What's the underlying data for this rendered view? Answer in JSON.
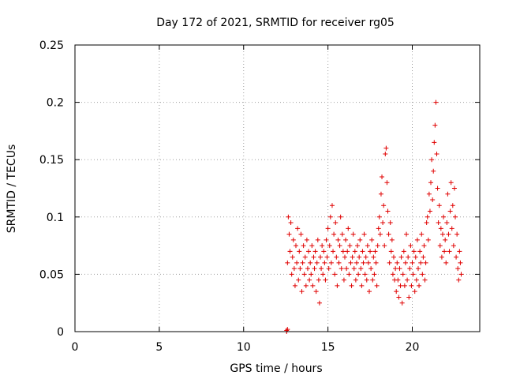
{
  "chart_data": {
    "type": "scatter",
    "title": "Day 172 of 2021, SRMTID for receiver rg05",
    "xlabel": "GPS time / hours",
    "ylabel": "SRMTID / TECUs",
    "xlim": [
      0,
      24
    ],
    "ylim": [
      0,
      0.25
    ],
    "xticks": [
      0,
      5,
      10,
      15,
      20
    ],
    "xtick_labels": [
      "0",
      "5",
      "10",
      "15",
      "20"
    ],
    "yticks": [
      0,
      0.05,
      0.1,
      0.15,
      0.2,
      0.25
    ],
    "ytick_labels": [
      "0",
      "0.05",
      "0.1",
      "0.15",
      "0.2",
      "0.25"
    ],
    "grid": true,
    "marker": "+",
    "color": "#e00000",
    "series": [
      {
        "name": "SRMTID",
        "points": [
          [
            12.55,
            0.0
          ],
          [
            12.55,
            0.001
          ],
          [
            12.6,
            0.002
          ],
          [
            12.6,
            0.06
          ],
          [
            12.65,
            0.1
          ],
          [
            12.7,
            0.085
          ],
          [
            12.75,
            0.07
          ],
          [
            12.8,
            0.095
          ],
          [
            12.85,
            0.05
          ],
          [
            12.9,
            0.065
          ],
          [
            12.95,
            0.08
          ],
          [
            13.0,
            0.055
          ],
          [
            13.05,
            0.04
          ],
          [
            13.1,
            0.075
          ],
          [
            13.15,
            0.06
          ],
          [
            13.2,
            0.09
          ],
          [
            13.25,
            0.045
          ],
          [
            13.3,
            0.07
          ],
          [
            13.35,
            0.055
          ],
          [
            13.4,
            0.085
          ],
          [
            13.45,
            0.035
          ],
          [
            13.5,
            0.06
          ],
          [
            13.55,
            0.075
          ],
          [
            13.6,
            0.05
          ],
          [
            13.65,
            0.065
          ],
          [
            13.7,
            0.04
          ],
          [
            13.75,
            0.08
          ],
          [
            13.8,
            0.055
          ],
          [
            13.85,
            0.07
          ],
          [
            13.9,
            0.045
          ],
          [
            13.95,
            0.06
          ],
          [
            14.0,
            0.05
          ],
          [
            14.05,
            0.075
          ],
          [
            14.1,
            0.04
          ],
          [
            14.15,
            0.065
          ],
          [
            14.2,
            0.055
          ],
          [
            14.25,
            0.07
          ],
          [
            14.3,
            0.035
          ],
          [
            14.35,
            0.06
          ],
          [
            14.4,
            0.08
          ],
          [
            14.45,
            0.045
          ],
          [
            14.5,
            0.025
          ],
          [
            14.55,
            0.065
          ],
          [
            14.6,
            0.055
          ],
          [
            14.65,
            0.075
          ],
          [
            14.7,
            0.05
          ],
          [
            14.75,
            0.07
          ],
          [
            14.8,
            0.06
          ],
          [
            14.85,
            0.045
          ],
          [
            14.9,
            0.08
          ],
          [
            14.95,
            0.065
          ],
          [
            15.0,
            0.09
          ],
          [
            15.05,
            0.055
          ],
          [
            15.1,
            0.075
          ],
          [
            15.15,
            0.1
          ],
          [
            15.2,
            0.06
          ],
          [
            15.25,
            0.11
          ],
          [
            15.3,
            0.07
          ],
          [
            15.35,
            0.085
          ],
          [
            15.4,
            0.05
          ],
          [
            15.45,
            0.095
          ],
          [
            15.5,
            0.065
          ],
          [
            15.55,
            0.04
          ],
          [
            15.6,
            0.08
          ],
          [
            15.65,
            0.06
          ],
          [
            15.7,
            0.075
          ],
          [
            15.75,
            0.1
          ],
          [
            15.8,
            0.055
          ],
          [
            15.85,
            0.085
          ],
          [
            15.9,
            0.07
          ],
          [
            15.95,
            0.045
          ],
          [
            16.0,
            0.065
          ],
          [
            16.05,
            0.08
          ],
          [
            16.1,
            0.055
          ],
          [
            16.15,
            0.07
          ],
          [
            16.2,
            0.09
          ],
          [
            16.25,
            0.05
          ],
          [
            16.3,
            0.075
          ],
          [
            16.35,
            0.06
          ],
          [
            16.4,
            0.04
          ],
          [
            16.45,
            0.065
          ],
          [
            16.5,
            0.085
          ],
          [
            16.55,
            0.055
          ],
          [
            16.6,
            0.07
          ],
          [
            16.65,
            0.045
          ],
          [
            16.7,
            0.06
          ],
          [
            16.75,
            0.075
          ],
          [
            16.8,
            0.05
          ],
          [
            16.85,
            0.065
          ],
          [
            16.9,
            0.08
          ],
          [
            16.95,
            0.055
          ],
          [
            17.0,
            0.04
          ],
          [
            17.05,
            0.07
          ],
          [
            17.1,
            0.06
          ],
          [
            17.15,
            0.085
          ],
          [
            17.2,
            0.05
          ],
          [
            17.25,
            0.065
          ],
          [
            17.3,
            0.045
          ],
          [
            17.35,
            0.075
          ],
          [
            17.4,
            0.06
          ],
          [
            17.45,
            0.035
          ],
          [
            17.5,
            0.07
          ],
          [
            17.55,
            0.055
          ],
          [
            17.6,
            0.08
          ],
          [
            17.65,
            0.045
          ],
          [
            17.7,
            0.065
          ],
          [
            17.75,
            0.05
          ],
          [
            17.8,
            0.07
          ],
          [
            17.85,
            0.06
          ],
          [
            17.9,
            0.04
          ],
          [
            17.95,
            0.075
          ],
          [
            18.0,
            0.09
          ],
          [
            18.05,
            0.1
          ],
          [
            18.1,
            0.085
          ],
          [
            18.15,
            0.12
          ],
          [
            18.2,
            0.135
          ],
          [
            18.25,
            0.095
          ],
          [
            18.3,
            0.11
          ],
          [
            18.35,
            0.075
          ],
          [
            18.4,
            0.155
          ],
          [
            18.45,
            0.16
          ],
          [
            18.5,
            0.13
          ],
          [
            18.55,
            0.105
          ],
          [
            18.6,
            0.085
          ],
          [
            18.65,
            0.06
          ],
          [
            18.7,
            0.095
          ],
          [
            18.75,
            0.07
          ],
          [
            18.8,
            0.08
          ],
          [
            18.85,
            0.05
          ],
          [
            18.9,
            0.065
          ],
          [
            18.95,
            0.045
          ],
          [
            19.0,
            0.055
          ],
          [
            19.05,
            0.035
          ],
          [
            19.1,
            0.06
          ],
          [
            19.15,
            0.045
          ],
          [
            19.2,
            0.03
          ],
          [
            19.25,
            0.055
          ],
          [
            19.3,
            0.04
          ],
          [
            19.35,
            0.065
          ],
          [
            19.4,
            0.025
          ],
          [
            19.45,
            0.05
          ],
          [
            19.5,
            0.07
          ],
          [
            19.55,
            0.04
          ],
          [
            19.6,
            0.06
          ],
          [
            19.65,
            0.085
          ],
          [
            19.7,
            0.045
          ],
          [
            19.75,
            0.065
          ],
          [
            19.8,
            0.03
          ],
          [
            19.85,
            0.055
          ],
          [
            19.9,
            0.075
          ],
          [
            19.95,
            0.04
          ],
          [
            20.0,
            0.06
          ],
          [
            20.05,
            0.05
          ],
          [
            20.1,
            0.07
          ],
          [
            20.15,
            0.035
          ],
          [
            20.2,
            0.065
          ],
          [
            20.25,
            0.045
          ],
          [
            20.3,
            0.08
          ],
          [
            20.35,
            0.055
          ],
          [
            20.4,
            0.04
          ],
          [
            20.45,
            0.07
          ],
          [
            20.5,
            0.06
          ],
          [
            20.55,
            0.085
          ],
          [
            20.6,
            0.05
          ],
          [
            20.65,
            0.065
          ],
          [
            20.7,
            0.075
          ],
          [
            20.75,
            0.045
          ],
          [
            20.8,
            0.06
          ],
          [
            20.85,
            0.095
          ],
          [
            20.9,
            0.1
          ],
          [
            20.95,
            0.08
          ],
          [
            21.0,
            0.12
          ],
          [
            21.05,
            0.105
          ],
          [
            21.1,
            0.13
          ],
          [
            21.15,
            0.15
          ],
          [
            21.2,
            0.115
          ],
          [
            21.25,
            0.14
          ],
          [
            21.3,
            0.165
          ],
          [
            21.35,
            0.18
          ],
          [
            21.4,
            0.2
          ],
          [
            21.45,
            0.155
          ],
          [
            21.5,
            0.125
          ],
          [
            21.55,
            0.095
          ],
          [
            21.6,
            0.11
          ],
          [
            21.65,
            0.075
          ],
          [
            21.7,
            0.09
          ],
          [
            21.75,
            0.065
          ],
          [
            21.8,
            0.085
          ],
          [
            21.85,
            0.1
          ],
          [
            21.9,
            0.07
          ],
          [
            21.95,
            0.08
          ],
          [
            22.0,
            0.06
          ],
          [
            22.05,
            0.095
          ],
          [
            22.1,
            0.12
          ],
          [
            22.15,
            0.085
          ],
          [
            22.2,
            0.07
          ],
          [
            22.25,
            0.105
          ],
          [
            22.3,
            0.13
          ],
          [
            22.35,
            0.09
          ],
          [
            22.4,
            0.11
          ],
          [
            22.45,
            0.075
          ],
          [
            22.5,
            0.125
          ],
          [
            22.55,
            0.1
          ],
          [
            22.6,
            0.065
          ],
          [
            22.65,
            0.085
          ],
          [
            22.7,
            0.055
          ],
          [
            22.75,
            0.045
          ],
          [
            22.8,
            0.07
          ],
          [
            22.85,
            0.06
          ],
          [
            22.9,
            0.05
          ]
        ]
      }
    ]
  }
}
